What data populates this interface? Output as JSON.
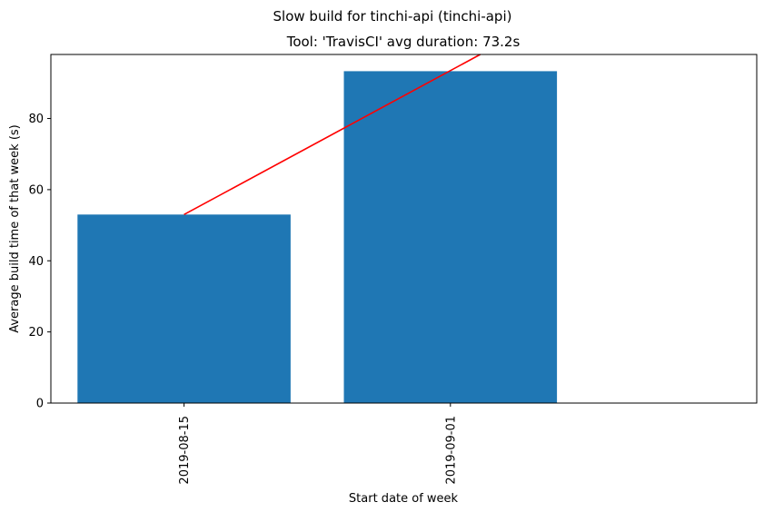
{
  "chart_data": {
    "type": "bar",
    "suptitle": "Slow build for tinchi-api (tinchi-api)",
    "title": "Tool: 'TravisCI' avg duration: 73.2s",
    "xlabel": "Start date of week",
    "ylabel": "Average build time of that week (s)",
    "categories": [
      "2019-08-15",
      "2019-09-01"
    ],
    "values": [
      53,
      93.3
    ],
    "ylim": [
      0,
      98
    ],
    "yticks": [
      0,
      20,
      40,
      60,
      80
    ],
    "bar_color": "#1f77b4",
    "trend_line": {
      "color": "#ff0000",
      "points": [
        [
          0,
          53
        ],
        [
          1.112,
          98
        ]
      ]
    },
    "grid": false,
    "legend": "none"
  }
}
